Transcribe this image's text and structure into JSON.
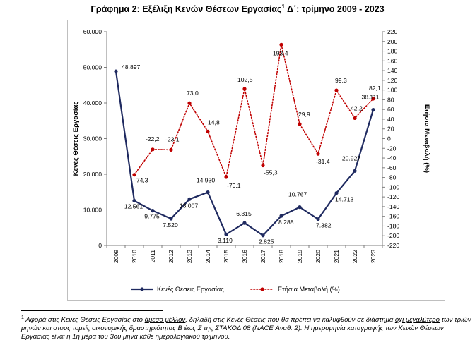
{
  "title": {
    "text_before": "Γράφημα 2: Εξέλιξη Κενών Θέσεων Εργασίας",
    "sup": "1",
    "text_after": " Δ΄: τρίμηνο 2009 - 2023"
  },
  "footnote": {
    "marker": "1",
    "part1": " Αφορά στις Κενές Θέσεις Εργασίας στο ",
    "u1": "άμεσο μέλλον",
    "part2": ", δηλαδή στις Κενές Θέσεις που θα πρέπει να καλυφθούν σε διάστημα ",
    "u2": "όχι μεγαλύτερο",
    "part3": " των τριών μηνών και στους τομείς οικονομικής δραστηριότητας Β έως Σ της ΣΤΑΚΟΔ 08 (NACE Αναθ. 2). Η ημερομηνία καταγραφής των Κενών Θέσεων Εργασίας είναι η 1η μέρα του 3ου μήνα κάθε ημερολογιακού τριμήνου."
  },
  "chart_data": {
    "type": "line",
    "categories": [
      "2009",
      "2010",
      "2011",
      "2012",
      "2013",
      "2014",
      "2015",
      "2016",
      "2017",
      "2018",
      "2019",
      "2020",
      "2021",
      "2022",
      "2023"
    ],
    "ylabel": "Κενές Θέσεις Εργασίας",
    "y2label": "Ετήσια Μεταβολή (%)",
    "ylim": [
      0,
      60000
    ],
    "y2lim": [
      -220,
      220
    ],
    "y_ticks": [
      "0",
      "10.000",
      "20.000",
      "30.000",
      "40.000",
      "50.000",
      "60.000"
    ],
    "y2_ticks": [
      "-220",
      "-200",
      "-180",
      "-160",
      "-140",
      "-120",
      "-100",
      "-80",
      "-60",
      "-40",
      "-20",
      "0",
      "20",
      "40",
      "60",
      "80",
      "100",
      "120",
      "140",
      "160",
      "180",
      "200",
      "220"
    ],
    "grid": false,
    "legend_position": "bottom",
    "series": [
      {
        "name": "Κενές Θέσεις Εργασίας",
        "axis": "left",
        "color": "#1f2a60",
        "style": "solid",
        "values": [
          48897,
          12561,
          9775,
          7520,
          13007,
          14930,
          3119,
          6315,
          2825,
          8288,
          10767,
          7382,
          14713,
          20927,
          38111
        ],
        "labels": [
          "48.897",
          "12.561",
          "9.775",
          "7.520",
          "13.007",
          "14.930",
          "3.119",
          "6.315",
          "2.825",
          "8.288",
          "10.767",
          "7.382",
          "14.713",
          "20.927",
          "38.111"
        ]
      },
      {
        "name": "Ετήσια Μεταβολή (%)",
        "axis": "right",
        "color": "#c00000",
        "style": "dotted",
        "values": [
          null,
          -74.3,
          -22.2,
          -23.1,
          73.0,
          14.8,
          -79.1,
          102.5,
          -55.3,
          193.4,
          29.9,
          -31.4,
          99.3,
          42.2,
          82.1
        ],
        "labels": [
          "",
          "-74,3",
          "-22,2",
          "-23,1",
          "73,0",
          "14,8",
          "-79,1",
          "102,5",
          "-55,3",
          "193,4",
          "29,9",
          "-31,4",
          "99,3",
          "42,2",
          "82,1"
        ]
      }
    ]
  }
}
